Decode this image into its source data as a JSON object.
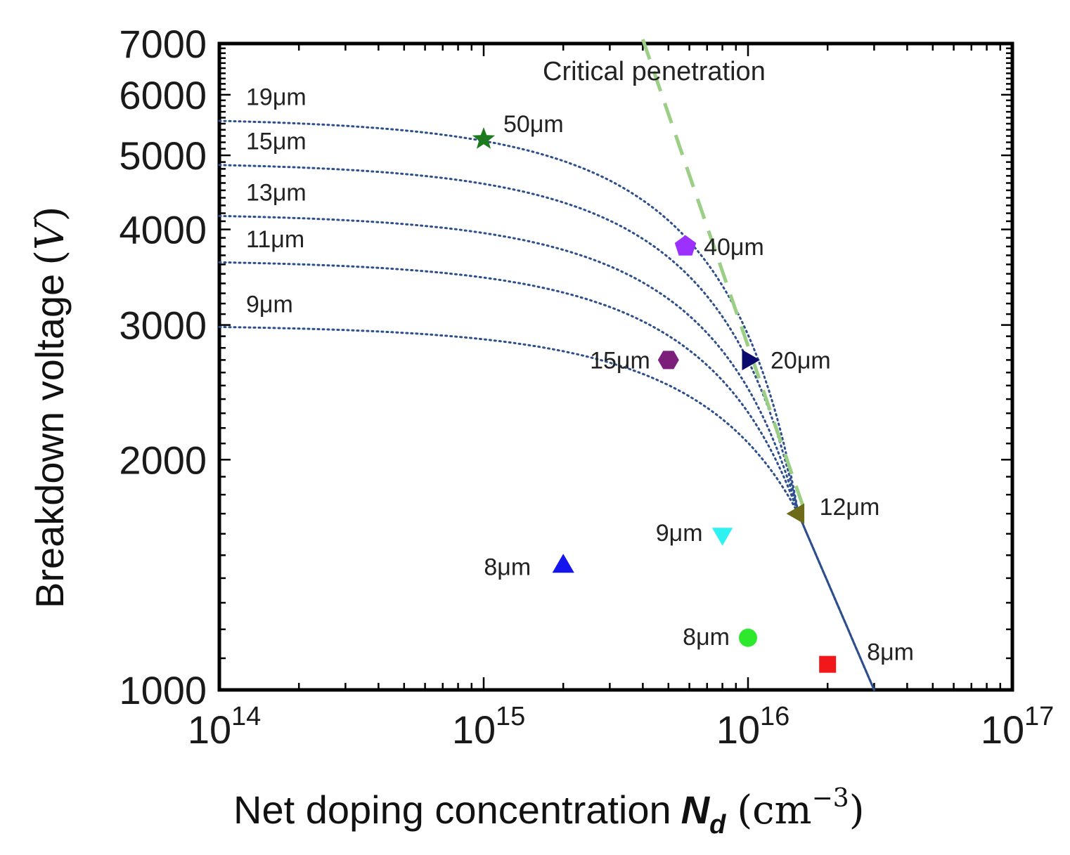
{
  "chart_data": {
    "type": "scatter",
    "xscale": "log",
    "yscale": "log",
    "xlim": [
      100000000000000.0,
      1e+17
    ],
    "ylim": [
      1000,
      7000
    ],
    "xlabel": {
      "main": "Net doping concentration",
      "symbol": "N",
      "subscript": "d",
      "unit_open": "(cm",
      "unit_exp": "−3",
      "unit_close": ")"
    },
    "ylabel": {
      "main": "Breakdown voltage",
      "unit_open": "(",
      "unit": "V",
      "unit_close": ")"
    },
    "x_ticks": [
      {
        "base": "10",
        "exp": "14",
        "value": 100000000000000.0
      },
      {
        "base": "10",
        "exp": "15",
        "value": 1000000000000000.0
      },
      {
        "base": "10",
        "exp": "16",
        "value": 1e+16
      },
      {
        "base": "10",
        "exp": "17",
        "value": 1e+17
      }
    ],
    "y_ticks": [
      {
        "label": "1000",
        "value": 1000
      },
      {
        "label": "2000",
        "value": 2000
      },
      {
        "label": "3000",
        "value": 3000
      },
      {
        "label": "4000",
        "value": 4000
      },
      {
        "label": "5000",
        "value": 5000
      },
      {
        "label": "6000",
        "value": 6000
      },
      {
        "label": "7000",
        "value": 7000
      }
    ],
    "annotation": "Critical penetration",
    "critical_line": {
      "color": "#9bcf85",
      "points": [
        [
          4000000000000000.0,
          7000
        ],
        [
          1.65e+16,
          1700
        ]
      ]
    },
    "curves": {
      "color": "#2d4f8e",
      "series": [
        {
          "name": "9μm",
          "v0": 3000
        },
        {
          "name": "11μm",
          "v0": 3650
        },
        {
          "name": "13μm",
          "v0": 4200
        },
        {
          "name": "15μm",
          "v0": 4900
        },
        {
          "name": "19μm",
          "v0": 5600
        }
      ]
    },
    "points": [
      {
        "label": "50μm",
        "x": 1000000000000000.0,
        "y": 5250,
        "marker": "star",
        "color": "#1e7a1e"
      },
      {
        "label": "40μm",
        "x": 5800000000000000.0,
        "y": 3800,
        "marker": "pentagon",
        "color": "#9b30ff"
      },
      {
        "label": "15μm",
        "x": 5000000000000000.0,
        "y": 2700,
        "marker": "hexagon",
        "color": "#7b1f7b"
      },
      {
        "label": "20μm",
        "x": 1e+16,
        "y": 2700,
        "marker": "triangle-right",
        "color": "#0a0a6e"
      },
      {
        "label": "12μm",
        "x": 1.55e+16,
        "y": 1700,
        "marker": "triangle-left",
        "color": "#6e6b18"
      },
      {
        "label": "9μm",
        "x": 8000000000000000.0,
        "y": 1600,
        "marker": "triangle-down",
        "color": "#2ef2f2"
      },
      {
        "label": "8μm",
        "x": 2000000000000000.0,
        "y": 1450,
        "marker": "triangle-up",
        "color": "#1515ee"
      },
      {
        "label": "8μm",
        "x": 1e+16,
        "y": 1170,
        "marker": "circle",
        "color": "#2ee82e"
      },
      {
        "label": "8μm",
        "x": 2e+16,
        "y": 1080,
        "marker": "square",
        "color": "#f01818"
      }
    ]
  }
}
